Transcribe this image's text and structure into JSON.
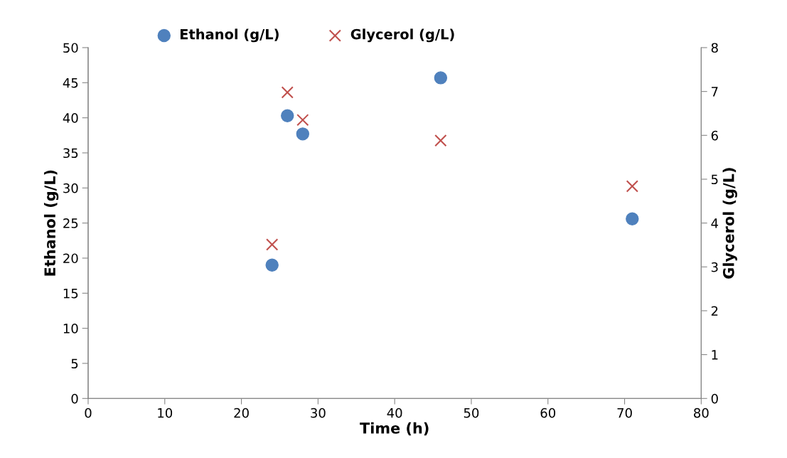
{
  "chart_data": {
    "type": "scatter",
    "xlabel": "Time (h)",
    "ylabel": "Ethanol (g/L)",
    "y2label": "Glycerol (g/L)",
    "series": [
      {
        "name": "Ethanol (g/L)",
        "color": "#4f81bd",
        "marker": "circle",
        "x": [
          24,
          26,
          28,
          46,
          71
        ],
        "values": [
          19.0,
          40.3,
          37.7,
          45.7,
          25.6
        ]
      },
      {
        "name": "Glycerol (g/L)",
        "color": "#c0504d",
        "marker": "cross",
        "axis": "y2",
        "x": [
          24,
          26,
          28,
          46,
          71
        ],
        "values": [
          3.51,
          6.98,
          6.35,
          5.88,
          4.84
        ]
      }
    ],
    "xlim": [
      0,
      80
    ],
    "xticks": [
      0,
      10,
      20,
      30,
      40,
      50,
      60,
      70,
      80
    ],
    "ylim": [
      0,
      50
    ],
    "yticks": [
      0,
      5,
      10,
      15,
      20,
      25,
      30,
      35,
      40,
      45,
      50
    ],
    "y2lim": [
      0,
      8
    ],
    "y2ticks": [
      0,
      1,
      2,
      3,
      4,
      5,
      6,
      7,
      8
    ],
    "grid": false,
    "legend": "top"
  }
}
